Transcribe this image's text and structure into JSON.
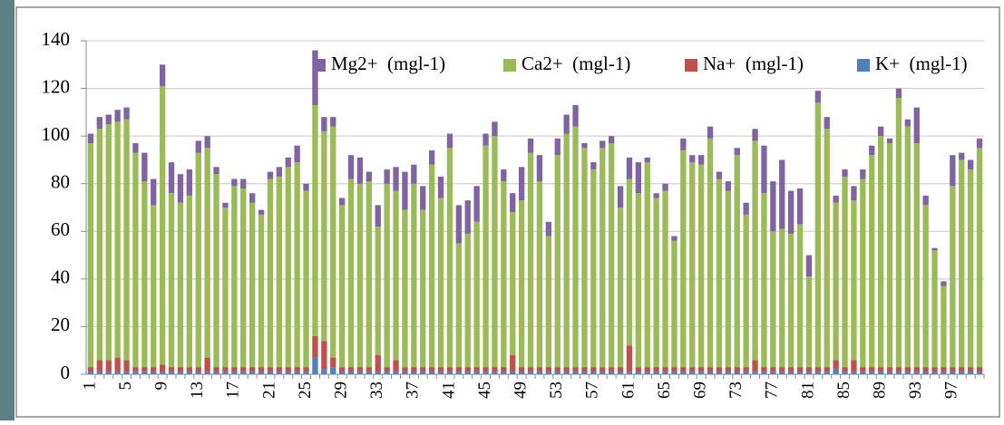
{
  "chart_data": {
    "type": "stacked_bar",
    "categories": [
      "1",
      null,
      null,
      null,
      "5",
      null,
      null,
      null,
      "9",
      null,
      null,
      null,
      "13",
      null,
      null,
      null,
      "17",
      null,
      null,
      null,
      "21",
      null,
      null,
      null,
      "25",
      null,
      null,
      null,
      "29",
      null,
      null,
      null,
      "33",
      null,
      null,
      null,
      "37",
      null,
      null,
      null,
      "41",
      null,
      null,
      null,
      "45",
      null,
      null,
      null,
      "49",
      null,
      null,
      null,
      "53",
      null,
      null,
      null,
      "57",
      null,
      null,
      null,
      "61",
      null,
      null,
      null,
      "65",
      null,
      null,
      null,
      "69",
      null,
      null,
      null,
      "73",
      null,
      null,
      null,
      "77",
      null,
      null,
      null,
      "81",
      null,
      null,
      null,
      "85",
      null,
      null,
      null,
      "89",
      null,
      null,
      null,
      "93",
      null,
      null,
      null,
      "97",
      null,
      null,
      null
    ],
    "series": [
      {
        "name": "K+  (mgl-1)",
        "color": "#4f81bd",
        "values": [
          1,
          1,
          1,
          1,
          1,
          1,
          1,
          1,
          1,
          1,
          1,
          1,
          1,
          1,
          1,
          1,
          1,
          1,
          1,
          1,
          1,
          1,
          1,
          1,
          1,
          7,
          2,
          3,
          1,
          1,
          1,
          1,
          1,
          1,
          1,
          1,
          1,
          1,
          1,
          1,
          1,
          1,
          1,
          1,
          1,
          1,
          1,
          1,
          1,
          1,
          1,
          1,
          1,
          1,
          1,
          1,
          1,
          1,
          1,
          1,
          1,
          1,
          1,
          1,
          1,
          1,
          1,
          1,
          1,
          1,
          1,
          1,
          1,
          1,
          1,
          1,
          1,
          1,
          1,
          1,
          1,
          1,
          1,
          2,
          1,
          1,
          1,
          1,
          1,
          1,
          1,
          1,
          1,
          1,
          1,
          1,
          1,
          1,
          1,
          1
        ]
      },
      {
        "name": "Na+  (mgl-1)",
        "color": "#c0504d",
        "values": [
          2,
          5,
          5,
          6,
          5,
          2,
          2,
          2,
          3,
          2,
          2,
          2,
          2,
          6,
          2,
          2,
          2,
          2,
          2,
          2,
          2,
          2,
          2,
          2,
          2,
          9,
          12,
          4,
          2,
          2,
          2,
          2,
          7,
          2,
          5,
          2,
          2,
          2,
          2,
          2,
          2,
          2,
          2,
          2,
          2,
          2,
          2,
          7,
          2,
          2,
          2,
          2,
          2,
          2,
          2,
          2,
          2,
          2,
          2,
          2,
          11,
          2,
          2,
          2,
          2,
          2,
          2,
          2,
          2,
          2,
          2,
          2,
          2,
          2,
          5,
          2,
          2,
          2,
          2,
          2,
          2,
          2,
          2,
          4,
          2,
          5,
          2,
          2,
          2,
          2,
          2,
          2,
          2,
          2,
          2,
          2,
          2,
          2,
          2,
          2
        ]
      },
      {
        "name": "Ca2+  (mgl-1)",
        "color": "#9bbb59",
        "values": [
          94,
          97,
          99,
          99,
          101,
          90,
          78,
          68,
          117,
          73,
          69,
          72,
          90,
          88,
          81,
          67,
          76,
          75,
          69,
          64,
          79,
          80,
          84,
          86,
          74,
          97,
          88,
          97,
          68,
          79,
          77,
          78,
          54,
          77,
          71,
          66,
          77,
          66,
          85,
          71,
          92,
          52,
          56,
          61,
          93,
          97,
          78,
          60,
          70,
          90,
          78,
          55,
          89,
          98,
          101,
          92,
          83,
          92,
          94,
          67,
          70,
          73,
          86,
          71,
          74,
          53,
          91,
          86,
          85,
          96,
          79,
          74,
          89,
          64,
          92,
          73,
          57,
          58,
          56,
          60,
          38,
          111,
          100,
          66,
          80,
          67,
          79,
          89,
          97,
          94,
          113,
          101,
          94,
          68,
          49,
          34,
          76,
          87,
          83,
          92
        ]
      },
      {
        "name": "Mg2+  (mgl-1)",
        "color": "#8064a2",
        "values": [
          4,
          5,
          4,
          5,
          5,
          4,
          12,
          11,
          9,
          13,
          12,
          11,
          5,
          5,
          3,
          2,
          3,
          4,
          4,
          2,
          3,
          4,
          4,
          7,
          3,
          23,
          6,
          4,
          3,
          10,
          11,
          4,
          9,
          6,
          10,
          16,
          8,
          10,
          6,
          9,
          6,
          16,
          14,
          15,
          5,
          6,
          5,
          8,
          14,
          6,
          11,
          6,
          7,
          8,
          9,
          2,
          3,
          3,
          3,
          9,
          9,
          13,
          2,
          2,
          3,
          2,
          5,
          3,
          4,
          5,
          3,
          4,
          3,
          5,
          5,
          20,
          21,
          29,
          18,
          15,
          9,
          5,
          5,
          3,
          3,
          6,
          4,
          4,
          4,
          2,
          4,
          3,
          15,
          4,
          1,
          2,
          13,
          3,
          4,
          4
        ]
      }
    ],
    "ylim": [
      0,
      140
    ],
    "yticks": [
      0,
      20,
      40,
      60,
      80,
      100,
      120,
      140
    ],
    "grid": true,
    "legend": "top-right"
  }
}
